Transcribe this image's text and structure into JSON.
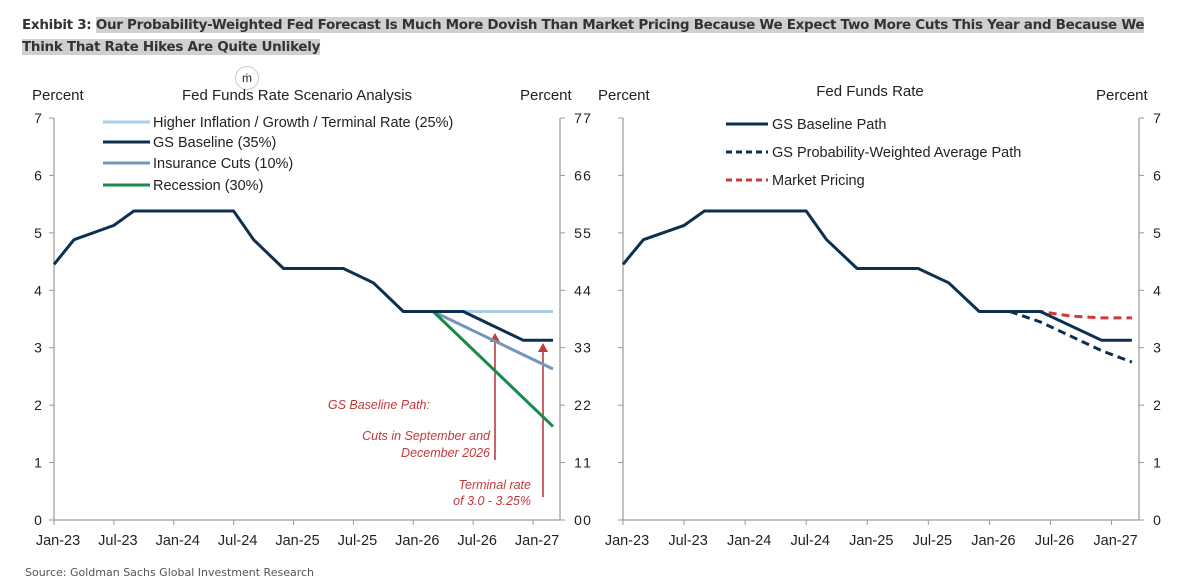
{
  "exhibit": {
    "label": "Exhibit 3:",
    "title": "Our Probability-Weighted Fed Forecast Is Much More Dovish Than Market Pricing Because We Expect Two More Cuts This Year and Because We Think That Rate Hikes Are Quite Unlikely"
  },
  "source": "Source: Goldman Sachs Global Investment Research",
  "colors": {
    "baseline": "#0d2f50",
    "higher_inflation": "#a9cfe8",
    "insurance": "#7496bd",
    "recession": "#1a8a4a",
    "market": "#d0393c",
    "annotation": "#c0393b",
    "axis": "#9a9a9a"
  },
  "chart_data": [
    {
      "type": "line",
      "title": "Fed Funds Rate Scenario Analysis",
      "ylabel_left": "Percent",
      "ylabel_right": "Percent",
      "ylim": [
        0,
        7
      ],
      "yticks": [
        0,
        1,
        2,
        3,
        4,
        5,
        6,
        7
      ],
      "xticks": [
        "Jan-23",
        "Jul-23",
        "Jan-24",
        "Jul-24",
        "Jan-25",
        "Jul-25",
        "Jan-26",
        "Jul-26",
        "Jan-27"
      ],
      "xlim": [
        "2023-01",
        "2027-03"
      ],
      "grid": false,
      "legend_position": "top-left",
      "series": [
        {
          "name": "Higher Inflation / Growth / Terminal Rate (25%)",
          "color_key": "higher_inflation",
          "style": "solid",
          "points": [
            [
              "2026-03",
              3.63
            ],
            [
              "2027-03",
              3.63
            ]
          ]
        },
        {
          "name": "GS Baseline (35%)",
          "color_key": "baseline",
          "style": "solid",
          "points": [
            [
              "2023-01",
              4.45
            ],
            [
              "2023-03",
              4.88
            ],
            [
              "2023-07",
              5.13
            ],
            [
              "2023-09",
              5.38
            ],
            [
              "2024-07",
              5.38
            ],
            [
              "2024-09",
              4.88
            ],
            [
              "2024-12",
              4.38
            ],
            [
              "2025-06",
              4.38
            ],
            [
              "2025-09",
              4.13
            ],
            [
              "2025-12",
              3.63
            ],
            [
              "2026-06",
              3.63
            ],
            [
              "2026-12",
              3.13
            ],
            [
              "2027-03",
              3.13
            ]
          ]
        },
        {
          "name": "Insurance Cuts (10%)",
          "color_key": "insurance",
          "style": "solid",
          "points": [
            [
              "2026-03",
              3.63
            ],
            [
              "2027-03",
              2.63
            ]
          ]
        },
        {
          "name": "Recession (30%)",
          "color_key": "recession",
          "style": "solid",
          "points": [
            [
              "2026-03",
              3.63
            ],
            [
              "2027-03",
              1.63
            ]
          ]
        }
      ],
      "annotations": [
        {
          "text": "GS Baseline Path:"
        },
        {
          "text": "Cuts in September and"
        },
        {
          "text": "December 2026"
        },
        {
          "text": "Terminal rate"
        },
        {
          "text": "of 3.0 - 3.25%"
        }
      ]
    },
    {
      "type": "line",
      "title": "Fed Funds Rate",
      "ylabel_left": "Percent",
      "ylabel_right": "Percent",
      "ylim": [
        0,
        7
      ],
      "yticks": [
        0,
        1,
        2,
        3,
        4,
        5,
        6,
        7
      ],
      "xticks": [
        "Jan-23",
        "Jul-23",
        "Jan-24",
        "Jul-24",
        "Jan-25",
        "Jul-25",
        "Jan-26",
        "Jul-26",
        "Jan-27"
      ],
      "xlim": [
        "2023-01",
        "2027-03"
      ],
      "grid": false,
      "legend_position": "top-left",
      "series": [
        {
          "name": "GS Baseline Path",
          "color_key": "baseline",
          "style": "solid",
          "points": [
            [
              "2023-01",
              4.45
            ],
            [
              "2023-03",
              4.88
            ],
            [
              "2023-07",
              5.13
            ],
            [
              "2023-09",
              5.38
            ],
            [
              "2024-07",
              5.38
            ],
            [
              "2024-09",
              4.88
            ],
            [
              "2024-12",
              4.38
            ],
            [
              "2025-06",
              4.38
            ],
            [
              "2025-09",
              4.13
            ],
            [
              "2025-12",
              3.63
            ],
            [
              "2026-06",
              3.63
            ],
            [
              "2026-12",
              3.13
            ],
            [
              "2027-03",
              3.13
            ]
          ]
        },
        {
          "name": "GS Probability-Weighted Average Path",
          "color_key": "baseline",
          "style": "dashed",
          "points": [
            [
              "2026-03",
              3.63
            ],
            [
              "2026-06",
              3.45
            ],
            [
              "2026-09",
              3.2
            ],
            [
              "2026-12",
              2.95
            ],
            [
              "2027-03",
              2.75
            ]
          ]
        },
        {
          "name": "Market Pricing",
          "color_key": "market",
          "style": "dashed",
          "points": [
            [
              "2026-03",
              3.63
            ],
            [
              "2026-06",
              3.63
            ],
            [
              "2026-09",
              3.55
            ],
            [
              "2026-12",
              3.52
            ],
            [
              "2027-03",
              3.52
            ]
          ]
        }
      ]
    }
  ]
}
